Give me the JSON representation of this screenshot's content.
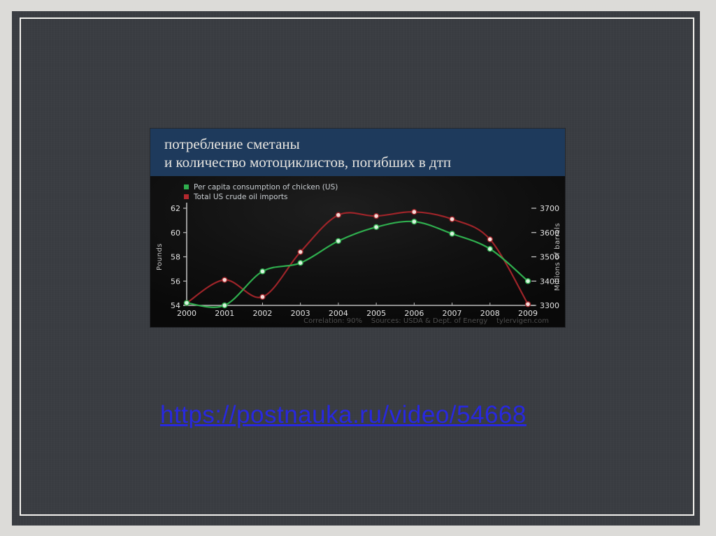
{
  "page": {
    "background_color": "#dcdbd8",
    "slide_color": "#3a3d42",
    "frame_color": "#f4f3ef"
  },
  "chart_header": {
    "line1": "потребление сметаны",
    "line2": "и количество мотоциклистов, погибших в дтп",
    "background_color": "#1e3a5c",
    "text_color": "#e7e5e0"
  },
  "link": {
    "text": "https://postnauka.ru/video/54668",
    "color": "#2828e0"
  },
  "chart_data": {
    "type": "line",
    "x": [
      2000,
      2001,
      2002,
      2003,
      2004,
      2005,
      2006,
      2007,
      2008,
      2009
    ],
    "series": [
      {
        "name": "Per capita consumption of chicken (US)",
        "axis": "left",
        "color": "#2fae4e",
        "marker_fill": "#d9f3de",
        "values": [
          54.2,
          54.0,
          56.8,
          57.5,
          59.3,
          60.45,
          60.9,
          59.9,
          58.65,
          56.0
        ]
      },
      {
        "name": "Total US crude oil imports",
        "axis": "right",
        "color": "#9e2429",
        "marker_fill": "#f6dcd8",
        "values": [
          3310,
          3405,
          3335,
          3520,
          3672,
          3668,
          3685,
          3655,
          3572,
          3305
        ]
      }
    ],
    "left_axis": {
      "label": "Pounds",
      "ticks": [
        54,
        56,
        58,
        60,
        62
      ],
      "range": [
        54,
        62
      ]
    },
    "right_axis": {
      "label": "Millions of barrels",
      "ticks": [
        3300,
        3400,
        3500,
        3600,
        3700
      ],
      "range": [
        3300,
        3700
      ]
    },
    "caption_parts": [
      "Correlation: 90%",
      "Sources: USDA & Dept. of Energy",
      "tylervigen.com"
    ],
    "legend_position": "top-left",
    "grid": false,
    "plot_background": "#0a0a0a"
  }
}
